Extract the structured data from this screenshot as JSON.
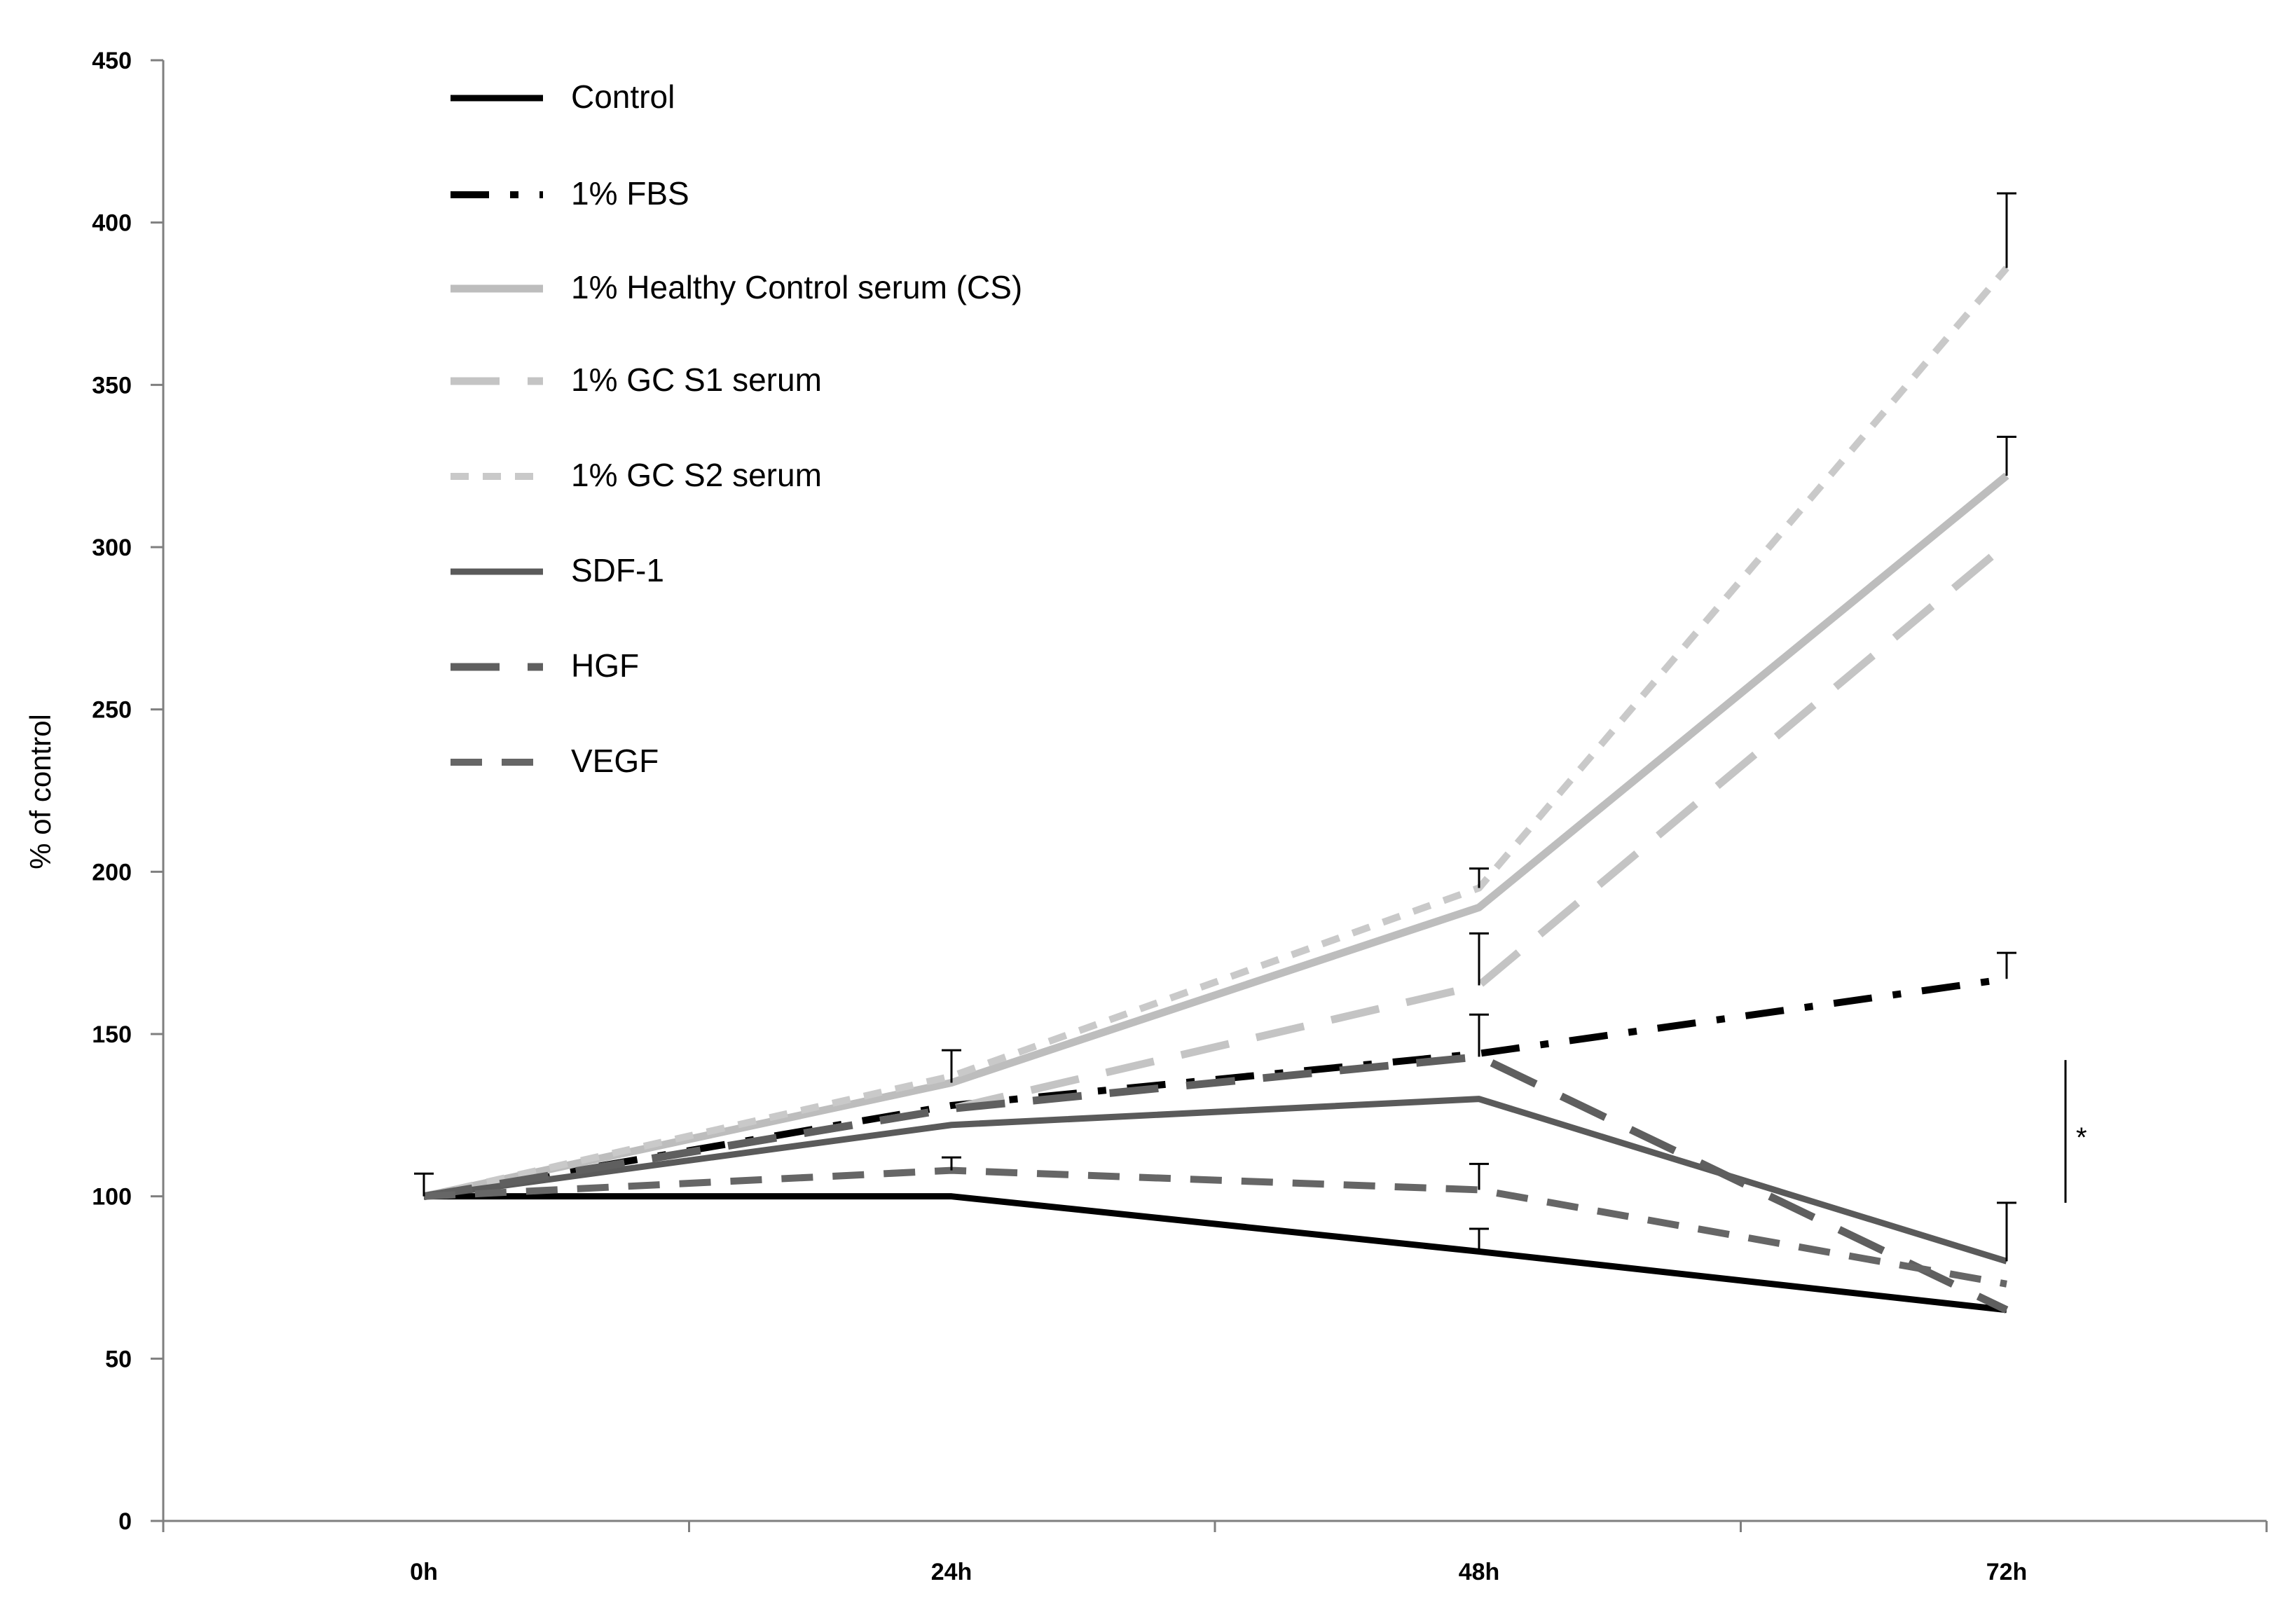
{
  "chart_data": {
    "type": "line",
    "categories": [
      "0h",
      "24h",
      "48h",
      "72h"
    ],
    "ylabel": "% of control",
    "ylim": [
      0,
      450
    ],
    "yticks": [
      0,
      50,
      100,
      150,
      200,
      250,
      300,
      350,
      400,
      450
    ],
    "grid": false,
    "legend_position": "top-left",
    "series": [
      {
        "name": "Control",
        "values": [
          100,
          100,
          83,
          65
        ],
        "errors": [
          0,
          0,
          7,
          0
        ],
        "color": "#000000",
        "dash": "solid",
        "width": 9
      },
      {
        "name": "1% FBS",
        "values": [
          100,
          128,
          144,
          167
        ],
        "errors": [
          0,
          0,
          0,
          8
        ],
        "color": "#000000",
        "dash": "fbs",
        "width": 10
      },
      {
        "name": "1% Healthy Control serum (CS)",
        "values": [
          100,
          135,
          189,
          322
        ],
        "errors": [
          0,
          10,
          0,
          12
        ],
        "color": "#bdbdbd",
        "dash": "solid",
        "width": 11
      },
      {
        "name": "1%  GC S1 serum",
        "values": [
          100,
          127,
          165,
          301
        ],
        "errors": [
          0,
          0,
          16,
          0
        ],
        "color": "#c4c4c4",
        "dash": "long",
        "width": 11
      },
      {
        "name": "1%  GC S2 serum",
        "values": [
          100,
          137,
          195,
          386
        ],
        "errors": [
          0,
          0,
          6,
          23
        ],
        "color": "#c9c9c9",
        "dash": "short",
        "width": 10
      },
      {
        "name": "SDF-1",
        "values": [
          100,
          122,
          130,
          80
        ],
        "errors": [
          0,
          0,
          0,
          18
        ],
        "color": "#5a5a5a",
        "dash": "solid",
        "width": 9
      },
      {
        "name": "HGF",
        "values": [
          100,
          127,
          143,
          65
        ],
        "errors": [
          0,
          0,
          13,
          0
        ],
        "color": "#5f5f5f",
        "dash": "long",
        "width": 11
      },
      {
        "name": "VEGF",
        "values": [
          100,
          108,
          102,
          73
        ],
        "errors": [
          7,
          4,
          8,
          0
        ],
        "color": "#666666",
        "dash": "medium",
        "width": 10
      }
    ],
    "annotations": [
      {
        "text": "*",
        "x_after": "72h",
        "y_range": [
          98,
          142
        ]
      }
    ]
  }
}
